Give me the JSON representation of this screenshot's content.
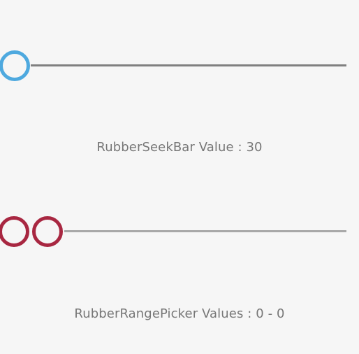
{
  "seekbar": {
    "value": 30,
    "label": "RubberSeekBar Value :  30",
    "thumb_color": "#4ea9df",
    "track_color": "#808080"
  },
  "range_picker": {
    "start_value": 0,
    "end_value": 0,
    "label": "RubberRangePicker Values :  0 - 0",
    "thumb_color": "#a82741",
    "track_color": "#a8a8a8"
  }
}
